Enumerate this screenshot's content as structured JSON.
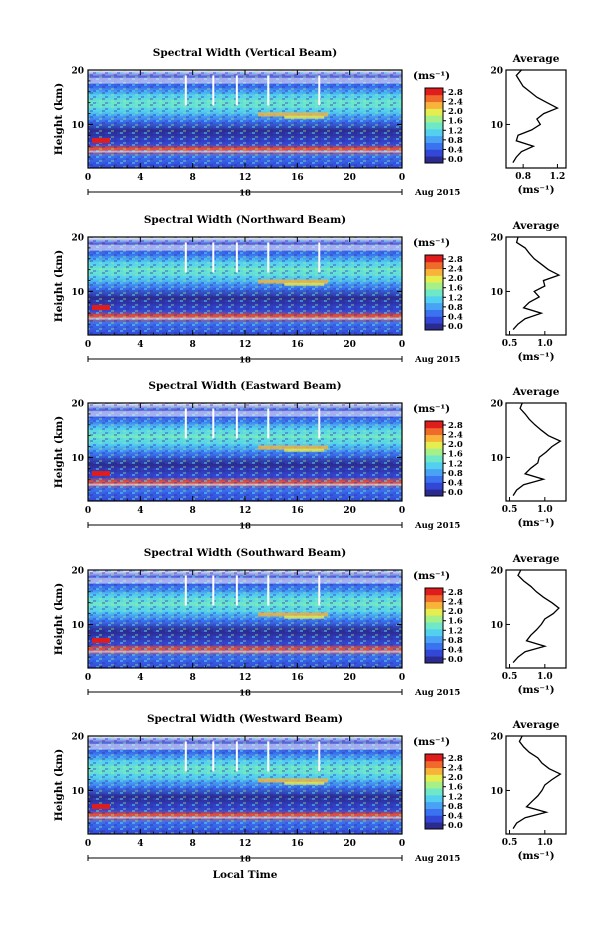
{
  "figure": {
    "xlabel": "Local Time",
    "ylabel": "Height (km)",
    "date_label": "18",
    "month_label": "Aug 2015",
    "colorbar_unit": "(ms⁻¹)",
    "avg_title": "Average",
    "avg_xlabel": "(ms⁻¹)"
  },
  "colors": {
    "scale": [
      "#2b2b8f",
      "#3347d6",
      "#3a72f0",
      "#49a3f5",
      "#53d0f0",
      "#6fe8c8",
      "#a6f08a",
      "#e6ee4f",
      "#f7b33a",
      "#f06a2b",
      "#e01d1d"
    ]
  },
  "chart_data": [
    {
      "type": "heatmap",
      "title": "Spectral Width (Vertical Beam)",
      "x_range_hours": [
        0,
        24
      ],
      "x_ticks": [
        "0",
        "4",
        "8",
        "12",
        "16",
        "20",
        "0"
      ],
      "y_range_km": [
        2,
        20
      ],
      "y_ticks": [
        "10",
        "20"
      ],
      "colorbar_ticks": [
        "0.0",
        "0.4",
        "0.8",
        "1.2",
        "1.6",
        "2.0",
        "2.4",
        "2.8"
      ],
      "avg_xticks": [
        "0.8",
        "1.2"
      ],
      "avg_xlim": [
        0.6,
        1.3
      ],
      "avg_profile": {
        "height_km": [
          3,
          4,
          5,
          6,
          7,
          8,
          9,
          10,
          11,
          12,
          13,
          14,
          15,
          16,
          17,
          18,
          19,
          20
        ],
        "width_ms": [
          0.68,
          0.72,
          0.78,
          0.92,
          0.72,
          0.74,
          0.9,
          1.0,
          0.96,
          1.04,
          1.2,
          1.08,
          0.96,
          0.88,
          0.8,
          0.76,
          0.72,
          0.78
        ]
      }
    },
    {
      "type": "heatmap",
      "title": "Spectral Width (Northward Beam)",
      "x_range_hours": [
        0,
        24
      ],
      "x_ticks": [
        "0",
        "4",
        "8",
        "12",
        "16",
        "20",
        "0"
      ],
      "y_range_km": [
        2,
        20
      ],
      "y_ticks": [
        "10",
        "20"
      ],
      "colorbar_ticks": [
        "0.0",
        "0.4",
        "0.8",
        "1.2",
        "1.6",
        "2.0",
        "2.4",
        "2.8"
      ],
      "avg_xticks": [
        "0.5",
        "1.0"
      ],
      "avg_xlim": [
        0.45,
        1.3
      ],
      "avg_profile": {
        "height_km": [
          3,
          4,
          5,
          6,
          7,
          8,
          9,
          10,
          11,
          12,
          13,
          14,
          15,
          16,
          17,
          18,
          19,
          20
        ],
        "width_ms": [
          0.55,
          0.62,
          0.72,
          0.95,
          0.7,
          0.78,
          0.92,
          0.85,
          1.0,
          0.98,
          1.2,
          1.05,
          0.95,
          0.85,
          0.78,
          0.72,
          0.6,
          0.62
        ]
      }
    },
    {
      "type": "heatmap",
      "title": "Spectral Width (Eastward Beam)",
      "x_range_hours": [
        0,
        24
      ],
      "x_ticks": [
        "0",
        "4",
        "8",
        "12",
        "16",
        "20",
        "0"
      ],
      "y_range_km": [
        2,
        20
      ],
      "y_ticks": [
        "10",
        "20"
      ],
      "colorbar_ticks": [
        "0.0",
        "0.4",
        "0.8",
        "1.2",
        "1.6",
        "2.0",
        "2.4",
        "2.8"
      ],
      "avg_xticks": [
        "0.5",
        "1.0"
      ],
      "avg_xlim": [
        0.45,
        1.3
      ],
      "avg_profile": {
        "height_km": [
          3,
          4,
          5,
          6,
          7,
          8,
          9,
          10,
          11,
          12,
          13,
          14,
          15,
          16,
          17,
          18,
          19,
          20
        ],
        "width_ms": [
          0.55,
          0.6,
          0.7,
          0.98,
          0.72,
          0.8,
          0.9,
          0.92,
          1.02,
          1.1,
          1.22,
          1.05,
          0.95,
          0.86,
          0.78,
          0.72,
          0.65,
          0.68
        ]
      }
    },
    {
      "type": "heatmap",
      "title": "Spectral Width (Southward Beam)",
      "x_range_hours": [
        0,
        24
      ],
      "x_ticks": [
        "0",
        "4",
        "8",
        "12",
        "16",
        "20",
        "0"
      ],
      "y_range_km": [
        2,
        20
      ],
      "y_ticks": [
        "10",
        "20"
      ],
      "colorbar_ticks": [
        "0.0",
        "0.4",
        "0.8",
        "1.2",
        "1.6",
        "2.0",
        "2.4",
        "2.8"
      ],
      "avg_xticks": [
        "0.5",
        "1.0"
      ],
      "avg_xlim": [
        0.45,
        1.3
      ],
      "avg_profile": {
        "height_km": [
          3,
          4,
          5,
          6,
          7,
          8,
          9,
          10,
          11,
          12,
          13,
          14,
          15,
          16,
          17,
          18,
          19,
          20
        ],
        "width_ms": [
          0.55,
          0.62,
          0.72,
          1.0,
          0.74,
          0.8,
          0.88,
          0.95,
          1.0,
          1.12,
          1.2,
          1.1,
          0.98,
          0.88,
          0.8,
          0.7,
          0.62,
          0.66
        ]
      }
    },
    {
      "type": "heatmap",
      "title": "Spectral Width (Westward Beam)",
      "x_range_hours": [
        0,
        24
      ],
      "x_ticks": [
        "0",
        "4",
        "8",
        "12",
        "16",
        "20",
        "0"
      ],
      "y_range_km": [
        2,
        20
      ],
      "y_ticks": [
        "10",
        "20"
      ],
      "colorbar_ticks": [
        "0.0",
        "0.4",
        "0.8",
        "1.2",
        "1.6",
        "2.0",
        "2.4",
        "2.8"
      ],
      "avg_xticks": [
        "0.5",
        "1.0"
      ],
      "avg_xlim": [
        0.45,
        1.3
      ],
      "avg_profile": {
        "height_km": [
          3,
          4,
          5,
          6,
          7,
          8,
          9,
          10,
          11,
          12,
          13,
          14,
          15,
          16,
          17,
          18,
          19,
          20
        ],
        "width_ms": [
          0.55,
          0.6,
          0.72,
          1.02,
          0.74,
          0.82,
          0.9,
          0.96,
          1.0,
          1.1,
          1.22,
          1.06,
          0.96,
          0.9,
          0.78,
          0.7,
          0.64,
          0.68
        ]
      }
    }
  ]
}
